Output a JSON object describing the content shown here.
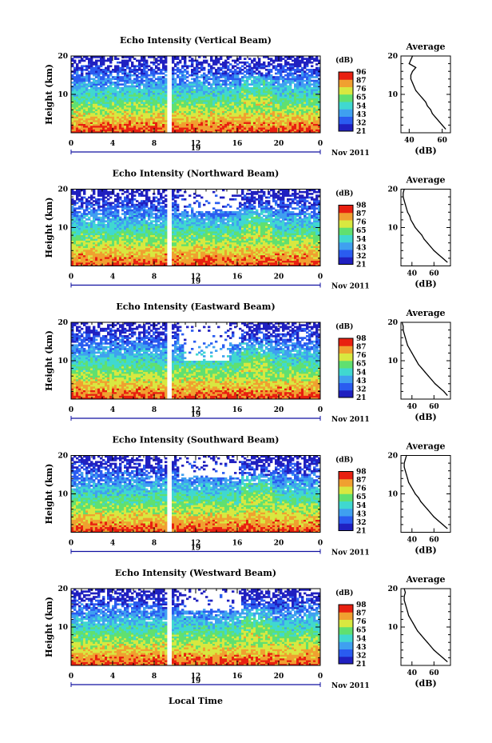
{
  "chart_data": [
    {
      "type": "heatmap",
      "title": "Echo Intensity (Vertical Beam)",
      "ylabel": "Height (km)",
      "yticks": [
        "10",
        "20"
      ],
      "ylim": [
        0,
        20
      ],
      "xticks": [
        "0",
        "4",
        "8",
        "12",
        "16",
        "20",
        "0"
      ],
      "xlim": [
        0,
        24
      ],
      "date_label": "19",
      "month_label": "Nov 2011",
      "colorbar_unit": "(dB)",
      "colorbar_ticks": [
        "96",
        "87",
        "76",
        "65",
        "54",
        "43",
        "32",
        "21"
      ],
      "gap_hour": 9.3,
      "profile": {
        "title": "Average",
        "xlabel": "(dB)",
        "xticks": [
          "40",
          "60"
        ],
        "xlim": [
          35,
          65
        ],
        "yticks": [
          "10",
          "20"
        ],
        "heights": [
          1,
          2,
          3,
          4,
          5,
          6,
          7,
          8,
          9,
          10,
          11,
          12,
          13,
          14,
          15,
          16,
          17,
          18,
          19,
          20
        ],
        "values": [
          62,
          60,
          58,
          56,
          54,
          53,
          51,
          50,
          48,
          46,
          44,
          43,
          42,
          41,
          41,
          42,
          44,
          40,
          41,
          42
        ]
      }
    },
    {
      "type": "heatmap",
      "title": "Echo Intensity (Northward Beam)",
      "ylabel": "Height (km)",
      "yticks": [
        "10",
        "20"
      ],
      "ylim": [
        0,
        20
      ],
      "xticks": [
        "0",
        "4",
        "8",
        "12",
        "16",
        "20",
        "0"
      ],
      "xlim": [
        0,
        24
      ],
      "date_label": "19",
      "month_label": "Nov 2011",
      "colorbar_unit": "(dB)",
      "colorbar_ticks": [
        "98",
        "87",
        "76",
        "65",
        "54",
        "43",
        "32",
        "21"
      ],
      "gap_hour": 9.3,
      "profile": {
        "title": "Average",
        "xlabel": "(dB)",
        "xticks": [
          "40",
          "60"
        ],
        "xlim": [
          30,
          75
        ],
        "yticks": [
          "10",
          "20"
        ],
        "heights": [
          1,
          2,
          3,
          4,
          5,
          6,
          7,
          8,
          9,
          10,
          11,
          12,
          13,
          14,
          15,
          16,
          17,
          18,
          19,
          20
        ],
        "values": [
          72,
          68,
          64,
          60,
          57,
          54,
          51,
          49,
          46,
          43,
          41,
          39,
          38,
          36,
          35,
          34,
          33,
          32,
          32,
          33
        ]
      }
    },
    {
      "type": "heatmap",
      "title": "Echo Intensity (Eastward Beam)",
      "ylabel": "Height (km)",
      "yticks": [
        "10",
        "20"
      ],
      "ylim": [
        0,
        20
      ],
      "xticks": [
        "0",
        "4",
        "8",
        "12",
        "16",
        "20",
        "0"
      ],
      "xlim": [
        0,
        24
      ],
      "date_label": "19",
      "month_label": "Nov 2011",
      "colorbar_unit": "(dB)",
      "colorbar_ticks": [
        "98",
        "87",
        "76",
        "65",
        "54",
        "43",
        "32",
        "21"
      ],
      "gap_hour": 9.3,
      "profile": {
        "title": "Average",
        "xlabel": "(dB)",
        "xticks": [
          "40",
          "60"
        ],
        "xlim": [
          30,
          75
        ],
        "yticks": [
          "10",
          "20"
        ],
        "heights": [
          1,
          2,
          3,
          4,
          5,
          6,
          7,
          8,
          9,
          10,
          11,
          12,
          13,
          14,
          15,
          16,
          17,
          18,
          19,
          20
        ],
        "values": [
          72,
          69,
          65,
          61,
          58,
          55,
          52,
          49,
          46,
          44,
          42,
          40,
          38,
          36,
          35,
          34,
          33,
          32,
          32,
          31
        ]
      }
    },
    {
      "type": "heatmap",
      "title": "Echo Intensity (Southward Beam)",
      "ylabel": "Height (km)",
      "yticks": [
        "10",
        "20"
      ],
      "ylim": [
        0,
        20
      ],
      "xticks": [
        "0",
        "4",
        "8",
        "12",
        "16",
        "20",
        "0"
      ],
      "xlim": [
        0,
        24
      ],
      "date_label": "19",
      "month_label": "Nov 2011",
      "colorbar_unit": "(dB)",
      "colorbar_ticks": [
        "98",
        "87",
        "76",
        "65",
        "54",
        "43",
        "32",
        "21"
      ],
      "gap_hour": 9.3,
      "profile": {
        "title": "Average",
        "xlabel": "(dB)",
        "xticks": [
          "40",
          "60"
        ],
        "xlim": [
          30,
          75
        ],
        "yticks": [
          "10",
          "20"
        ],
        "heights": [
          1,
          2,
          3,
          4,
          5,
          6,
          7,
          8,
          9,
          10,
          11,
          12,
          13,
          14,
          15,
          16,
          17,
          18,
          19,
          20
        ],
        "values": [
          72,
          68,
          64,
          60,
          57,
          54,
          51,
          48,
          46,
          43,
          41,
          39,
          37,
          36,
          35,
          34,
          33,
          33,
          34,
          35
        ]
      }
    },
    {
      "type": "heatmap",
      "title": "Echo Intensity (Westward Beam)",
      "ylabel": "Height (km)",
      "yticks": [
        "10",
        "20"
      ],
      "ylim": [
        0,
        20
      ],
      "xticks": [
        "0",
        "4",
        "8",
        "12",
        "16",
        "20",
        "0"
      ],
      "xlim": [
        0,
        24
      ],
      "date_label": "19",
      "month_label": "Nov 2011",
      "colorbar_unit": "(dB)",
      "colorbar_ticks": [
        "98",
        "87",
        "76",
        "65",
        "54",
        "43",
        "32",
        "21"
      ],
      "gap_hour": 9.3,
      "profile": {
        "title": "Average",
        "xlabel": "(dB)",
        "xticks": [
          "40",
          "60"
        ],
        "xlim": [
          30,
          75
        ],
        "yticks": [
          "10",
          "20"
        ],
        "heights": [
          1,
          2,
          3,
          4,
          5,
          6,
          7,
          8,
          9,
          10,
          11,
          12,
          13,
          14,
          15,
          16,
          17,
          18,
          19,
          20
        ],
        "values": [
          72,
          68,
          64,
          60,
          57,
          54,
          51,
          48,
          45,
          43,
          41,
          39,
          37,
          36,
          35,
          34,
          33,
          33,
          34,
          33
        ]
      }
    }
  ],
  "common": {
    "xlabel": "Local Time",
    "colormap": [
      "#2020c0",
      "#2a5cf0",
      "#3fa0f0",
      "#40d8d0",
      "#60e070",
      "#d8e840",
      "#f0a030",
      "#e82010"
    ]
  }
}
